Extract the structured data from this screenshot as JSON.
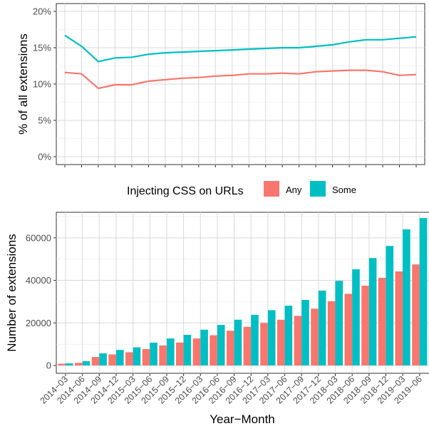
{
  "colors": {
    "any": "#F8766D",
    "some": "#00BFC4",
    "grid": "#D9D9D9",
    "axis": "#333333",
    "text": "#4D4D4D"
  },
  "legend": {
    "title": "Injecting CSS on URLs",
    "items": [
      "Any",
      "Some"
    ]
  },
  "chart_data": [
    {
      "type": "line",
      "xlabel": "",
      "ylabel": "% of all extensions",
      "ylim": [
        0,
        20
      ],
      "y_ticks": [
        "0%",
        "5%",
        "10%",
        "15%",
        "20%"
      ],
      "grid": true,
      "categories": [
        "2014-03",
        "2014-06",
        "2014-09",
        "2014-12",
        "2015-03",
        "2015-06",
        "2015-09",
        "2015-12",
        "2016-03",
        "2016-06",
        "2016-09",
        "2016-12",
        "2017-03",
        "2017-06",
        "2017-09",
        "2017-12",
        "2018-03",
        "2018-06",
        "2018-09",
        "2018-12",
        "2019-03",
        "2019-06"
      ],
      "series": [
        {
          "name": "Any",
          "values": [
            11.6,
            11.4,
            9.4,
            9.9,
            9.9,
            10.4,
            10.6,
            10.8,
            10.9,
            11.1,
            11.2,
            11.4,
            11.4,
            11.5,
            11.4,
            11.7,
            11.8,
            11.9,
            11.9,
            11.7,
            11.2,
            11.3
          ]
        },
        {
          "name": "Some",
          "values": [
            16.7,
            15.2,
            13.1,
            13.6,
            13.7,
            14.1,
            14.3,
            14.4,
            14.5,
            14.6,
            14.7,
            14.8,
            14.9,
            15.0,
            15.0,
            15.2,
            15.4,
            15.8,
            16.1,
            16.1,
            16.3,
            16.5
          ]
        }
      ]
    },
    {
      "type": "bar",
      "xlabel": "Year−Month",
      "ylabel": "Number of extensions",
      "ylim": [
        0,
        72000
      ],
      "y_ticks": [
        "0",
        "20000",
        "40000",
        "60000"
      ],
      "grid": true,
      "categories": [
        "2014−03",
        "2014−06",
        "2014−09",
        "2014−12",
        "2015−03",
        "2015−06",
        "2015−09",
        "2015−12",
        "2016−03",
        "2016−06",
        "2016−09",
        "2016−12",
        "2017−03",
        "2017−06",
        "2017−09",
        "2017−12",
        "2018−03",
        "2018−06",
        "2018−09",
        "2018−12",
        "2019−03",
        "2019−06"
      ],
      "series": [
        {
          "name": "Any",
          "values": [
            800,
            1200,
            4000,
            5200,
            6200,
            7700,
            9400,
            10800,
            12700,
            14200,
            16300,
            18200,
            20000,
            21500,
            23300,
            26700,
            30200,
            33700,
            37500,
            41200,
            44200,
            47500
          ]
        },
        {
          "name": "Some",
          "values": [
            1000,
            2000,
            5700,
            7300,
            8500,
            10700,
            12700,
            14400,
            16800,
            19100,
            21500,
            23800,
            26000,
            28100,
            30800,
            35200,
            39800,
            45200,
            50500,
            56200,
            64000,
            69300
          ]
        }
      ]
    }
  ]
}
